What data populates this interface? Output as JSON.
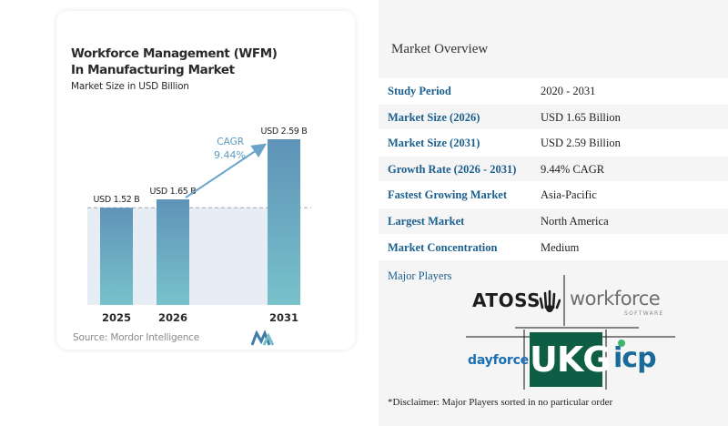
{
  "chart": {
    "title": "Workforce Management (WFM) In Manufacturing Market",
    "subtitle": "Market Size in USD Billion",
    "source": "Source: Mordor Intelligence",
    "cagr_label": "CAGR",
    "cagr_value": "9.44%"
  },
  "chart_data": {
    "type": "bar",
    "categories": [
      "2025",
      "2026",
      "2031"
    ],
    "values": [
      1.52,
      1.65,
      2.59
    ],
    "data_labels": [
      "USD 1.52 B",
      "USD 1.65 B",
      "USD 2.59 B"
    ],
    "title": "Workforce Management (WFM) In Manufacturing Market",
    "subtitle": "Market Size in USD Billion",
    "xlabel": "",
    "ylabel": "",
    "ylim": [
      0,
      2.59
    ],
    "annotation": "CAGR 9.44%",
    "grid": false
  },
  "overview": {
    "title": "Market Overview",
    "rows": [
      {
        "label": "Study Period",
        "value": "2020 - 2031"
      },
      {
        "label": "Market Size (2026)",
        "value": "USD 1.65 Billion"
      },
      {
        "label": "Market Size (2031)",
        "value": "USD 2.59 Billion"
      },
      {
        "label": "Growth Rate (2026 - 2031)",
        "value": "9.44% CAGR"
      },
      {
        "label": "Fastest Growing Market",
        "value": "Asia-Pacific"
      },
      {
        "label": "Largest Market",
        "value": "North America"
      },
      {
        "label": "Market Concentration",
        "value": "Medium"
      }
    ]
  },
  "players": {
    "title": "Major Players",
    "logos": {
      "atoss": "ATOSS",
      "workforce": "workforce",
      "workforce_sub": "SOFTWARE",
      "dayforce": "dayforce",
      "ukg": "UKG",
      "icp": "icp"
    },
    "disclaimer": "*Disclaimer: Major Players sorted in no particular order"
  },
  "colors": {
    "bar_top": "#5f93b8",
    "bar_bottom": "#76bfc9",
    "label_blue": "#1a5f8f",
    "cagr_text": "#5b9bbf",
    "ukg_green": "#0d5e44"
  }
}
